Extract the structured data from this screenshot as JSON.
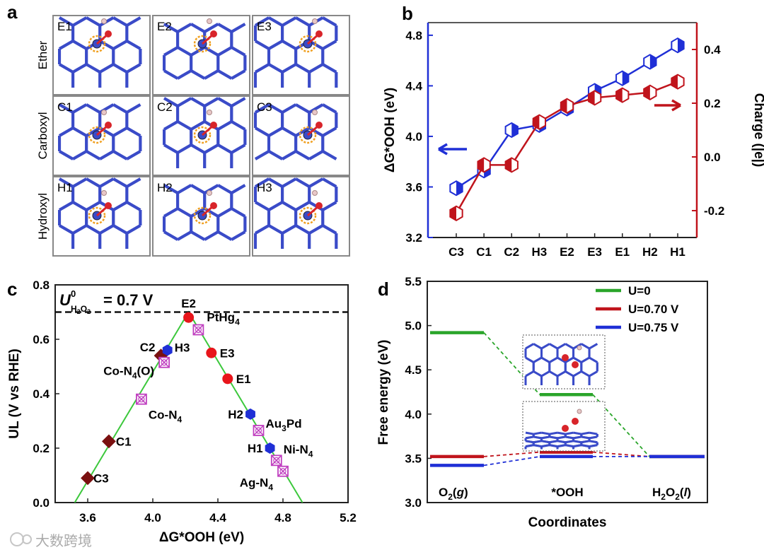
{
  "panels": {
    "a": {
      "label": "a",
      "rows": [
        {
          "label": "Ether",
          "cells": [
            "E1",
            "E2",
            "E3"
          ]
        },
        {
          "label": "Carboxyl",
          "cells": [
            "C1",
            "C2",
            "C3"
          ]
        },
        {
          "label": "Hydroxyl",
          "cells": [
            "H1",
            "H2",
            "H3"
          ]
        }
      ]
    },
    "b": {
      "label": "b"
    },
    "c": {
      "label": "c",
      "ul_label_main": "U",
      "ul_sup": "0",
      "ul_sub": "H",
      "ul_sub2": "2",
      "ul_sub3": "O",
      "ul_sub4": "2",
      "ul_value": " = 0.7 V"
    },
    "d": {
      "label": "d"
    }
  },
  "watermark": "大数跨境",
  "colors": {
    "blue": "#1f2fd6",
    "red": "#c0141c",
    "green": "#2aa52a",
    "darkred": "#7a1010",
    "magenta": "#c040c0",
    "line_green": "#3cc83c",
    "atom_blue": "#3a4bc8",
    "atom_red": "#d8242a"
  },
  "chart_data": [
    {
      "id": "b",
      "type": "line",
      "categories": [
        "C3",
        "C1",
        "C2",
        "H3",
        "E2",
        "E3",
        "E1",
        "H2",
        "H1"
      ],
      "series": [
        {
          "name": "ΔG*OOH",
          "axis": "left",
          "values": [
            3.59,
            3.73,
            4.05,
            4.09,
            4.22,
            4.36,
            4.46,
            4.59,
            4.72
          ]
        },
        {
          "name": "Charge",
          "axis": "right",
          "values": [
            -0.21,
            -0.03,
            -0.03,
            0.13,
            0.19,
            0.22,
            0.23,
            0.24,
            0.28
          ]
        }
      ],
      "ylabel_left": "ΔG*OOH (eV)",
      "ylim_left": [
        3.2,
        4.9
      ],
      "yticks_left": [
        "3.2",
        "3.6",
        "4.0",
        "4.4",
        "4.8"
      ],
      "ylabel_right": "Charge (|e|)",
      "ylim_right": [
        -0.3,
        0.5
      ],
      "yticks_right": [
        "-0.2",
        "0.0",
        "0.2",
        "0.4"
      ]
    },
    {
      "id": "c",
      "type": "scatter",
      "xlabel": "ΔG*OOH (eV)",
      "ylabel": "UL (V vs RHE)",
      "xlim": [
        3.4,
        5.2
      ],
      "ylim": [
        0.0,
        0.8
      ],
      "xticks": [
        "3.6",
        "4.0",
        "4.4",
        "4.8",
        "5.2"
      ],
      "yticks": [
        "0.0",
        "0.2",
        "0.4",
        "0.6",
        "0.8"
      ],
      "volcano_x": [
        3.52,
        4.22,
        4.92
      ],
      "equilibrium": 0.7,
      "points": [
        {
          "label": "C3",
          "x": 3.6,
          "y": 0.09,
          "kind": "carboxyl"
        },
        {
          "label": "C1",
          "x": 3.73,
          "y": 0.225,
          "kind": "carboxyl"
        },
        {
          "label": "C2",
          "x": 4.05,
          "y": 0.54,
          "kind": "carboxyl"
        },
        {
          "label": "H3",
          "x": 4.09,
          "y": 0.56,
          "kind": "hydroxyl"
        },
        {
          "label": "H2",
          "x": 4.6,
          "y": 0.325,
          "kind": "hydroxyl"
        },
        {
          "label": "H1",
          "x": 4.72,
          "y": 0.2,
          "kind": "hydroxyl"
        },
        {
          "label": "E2",
          "x": 4.22,
          "y": 0.68,
          "kind": "ether"
        },
        {
          "label": "E3",
          "x": 4.36,
          "y": 0.55,
          "kind": "ether"
        },
        {
          "label": "E1",
          "x": 4.46,
          "y": 0.455,
          "kind": "ether"
        },
        {
          "label": "PtHg4",
          "x": 4.28,
          "y": 0.635,
          "kind": "ref"
        },
        {
          "label": "Co-N4(O)",
          "x": 4.07,
          "y": 0.515,
          "kind": "ref"
        },
        {
          "label": "Co-N4",
          "x": 3.93,
          "y": 0.38,
          "kind": "ref"
        },
        {
          "label": "Au3Pd",
          "x": 4.65,
          "y": 0.265,
          "kind": "ref"
        },
        {
          "label": "Ni-N4",
          "x": 4.76,
          "y": 0.155,
          "kind": "ref"
        },
        {
          "label": "Ag-N4",
          "x": 4.8,
          "y": 0.115,
          "kind": "ref"
        }
      ]
    },
    {
      "id": "d",
      "type": "line",
      "xlabel": "Coordinates",
      "ylabel": "Free energy (eV)",
      "ylim": [
        3.0,
        5.5
      ],
      "yticks": [
        "3.0",
        "3.5",
        "4.0",
        "4.5",
        "5.0",
        "5.5"
      ],
      "states": [
        "O2(g)",
        "*OOH",
        "H2O2(l)"
      ],
      "series": [
        {
          "name": "U=0",
          "values": [
            4.92,
            4.22,
            3.52
          ]
        },
        {
          "name": "U=0.70 V",
          "values": [
            3.52,
            3.57,
            3.52
          ]
        },
        {
          "name": "U=0.75 V",
          "values": [
            3.42,
            3.52,
            3.52
          ]
        }
      ]
    }
  ]
}
